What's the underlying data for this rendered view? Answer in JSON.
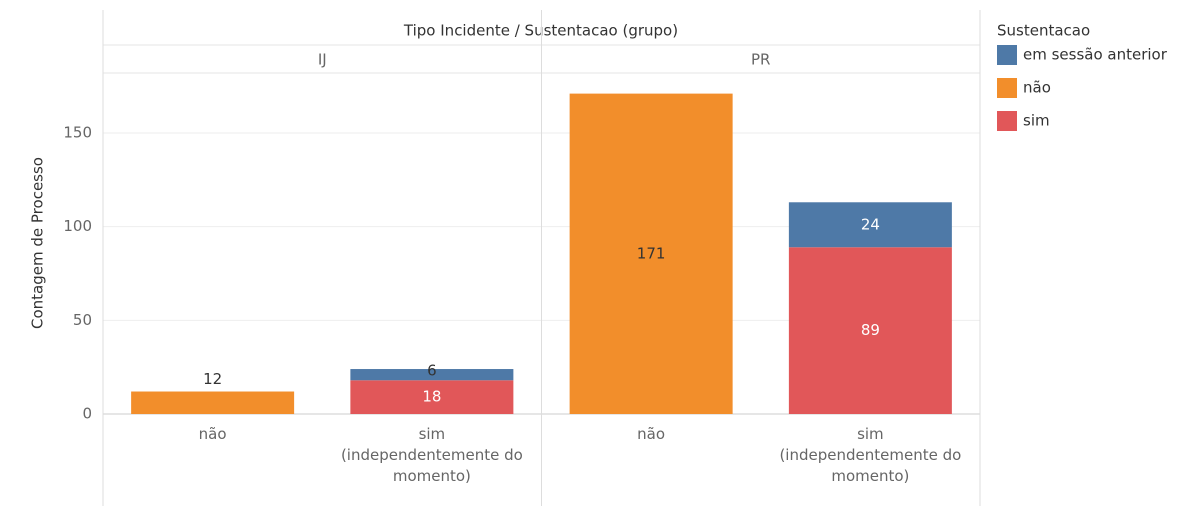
{
  "chart_data": {
    "type": "stacked-bar",
    "title": "Tipo Incidente / Sustentacao (grupo)",
    "y_label": "Contagem de Processo",
    "groups": [
      {
        "name": "IJ",
        "categories": [
          "não",
          "sim\n(independentemente do\nmomento)"
        ]
      },
      {
        "name": "PR",
        "categories": [
          "não",
          "sim\n(independentemente do\nmomento)"
        ]
      }
    ],
    "series": [
      {
        "name": "em sessão anterior",
        "color": "#4e79a7",
        "label_color": "#ffffff",
        "values": [
          null,
          6,
          null,
          24
        ]
      },
      {
        "name": "não",
        "color": "#f28e2b",
        "label_color": "#333333",
        "values": [
          12,
          null,
          171,
          null
        ]
      },
      {
        "name": "sim",
        "color": "#e15759",
        "label_color": "#ffffff",
        "values": [
          null,
          18,
          null,
          89
        ]
      }
    ],
    "legend_title": "Sustentacao",
    "ylim": [
      0,
      182
    ],
    "yticks": [
      0,
      50,
      100,
      150
    ],
    "grid": true
  }
}
